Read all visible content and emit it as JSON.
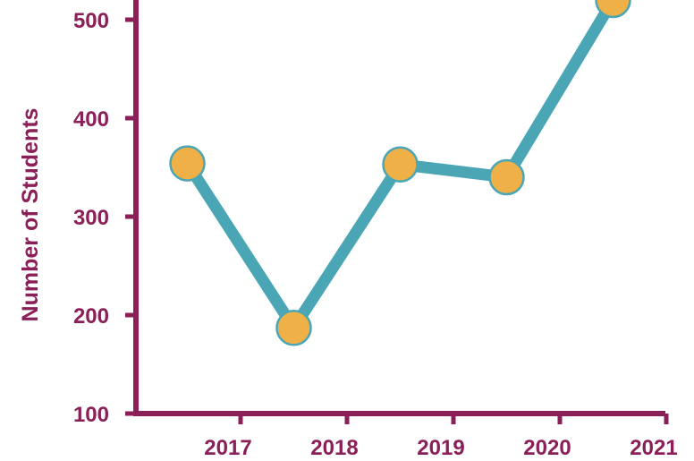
{
  "chart_data": {
    "type": "line",
    "title": "",
    "xlabel": "",
    "ylabel": "Number of Students",
    "x_tick_labels": [
      "2017",
      "2018",
      "2019",
      "2020",
      "2021"
    ],
    "y_tick_labels": [
      "100",
      "200",
      "300",
      "400",
      "500"
    ],
    "ylim": [
      100,
      520
    ],
    "grid": false,
    "points_x": [
      2016.5,
      2017.5,
      2018.5,
      2019.5,
      2020.5
    ],
    "series": [
      {
        "values": [
          354,
          187,
          353,
          340,
          520
        ]
      }
    ],
    "colors": {
      "axis": "#8b1f57",
      "line": "#4aa6b4",
      "marker_fill": "#f0b048",
      "marker_stroke": "#4aa6b4"
    }
  }
}
